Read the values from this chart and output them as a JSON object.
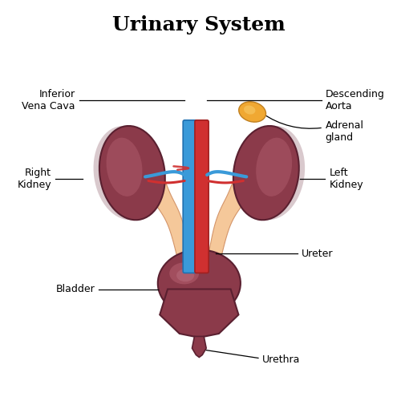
{
  "title": "Urinary System",
  "title_fontsize": 18,
  "title_fontweight": "bold",
  "background_color": "#ffffff",
  "kidney_color": "#8B3A4A",
  "kidney_highlight": "#B56070",
  "kidney_shadow": "#6B2A3A",
  "ureter_color": "#F5C89A",
  "ureter_outline": "#D4956A",
  "ureter_inner": "#E8B080",
  "bladder_color": "#8B3A4A",
  "bladder_highlight": "#B56070",
  "adrenal_color": "#F0A832",
  "adrenal_outline": "#C08020",
  "vein_color": "#3A9AD9",
  "artery_color": "#D03030",
  "label_color": "#000000",
  "label_fontsize": 9,
  "labels": {
    "inferior_vena_cava": "Inferior\nVena Cava",
    "descending_aorta": "Descending\nAorta",
    "adrenal_gland": "Adrenal\ngland",
    "right_kidney": "Right\nKidney",
    "left_kidney": "Left\nKidney",
    "ureter": "Ureter",
    "bladder": "Bladder",
    "urethra": "Urethra"
  }
}
